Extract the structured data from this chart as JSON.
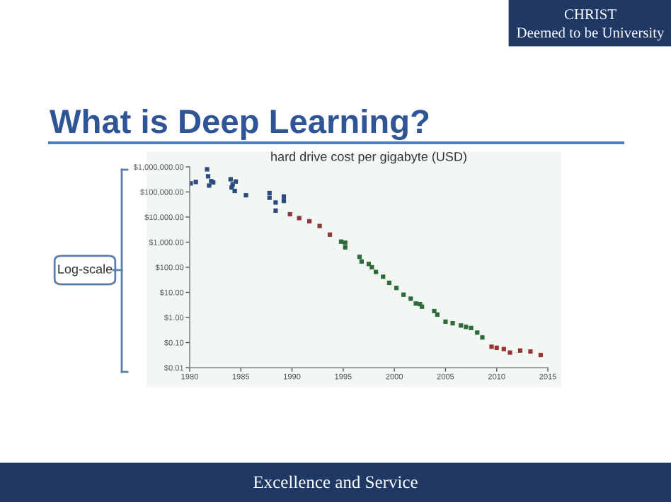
{
  "chart_data": {
    "type": "scatter",
    "title": "hard drive cost per gigabyte (USD)",
    "annotations": [
      "CHRIST",
      "Deemed to be University",
      "What is Deep Learning?",
      "Log-scale",
      "Excellence and Service"
    ],
    "series": [
      {
        "color": "#2b4a7e",
        "x": [
          1980.1,
          1980.6,
          1981.7,
          1981.8,
          1981.9,
          1982.1,
          1982.3,
          1984.0,
          1984.1,
          1984.2,
          1984.4,
          1984.5,
          1985.5,
          1987.8,
          1987.8,
          1988.4,
          1988.4,
          1989.2,
          1989.2
        ],
        "values": [
          220000,
          250000,
          800000,
          420000,
          180000,
          270000,
          240000,
          320000,
          150000,
          200000,
          110000,
          260000,
          74000,
          91000,
          59000,
          38000,
          18000,
          66000,
          44000
        ]
      },
      {
        "color": "#8b3a3a",
        "x": [
          1989.8,
          1990.7,
          1991.7,
          1992.7,
          1993.7
        ],
        "values": [
          13000,
          9100,
          6800,
          4400,
          2000
        ]
      },
      {
        "color": "#2e6b3a",
        "x": [
          1994.8,
          1995.2,
          1995.2,
          1996.6,
          1996.8,
          1997.5,
          1997.8,
          1998.2,
          1998.9,
          1999.5,
          2000.2,
          2000.9,
          2001.6,
          2002.1,
          2002.5,
          2002.7,
          2003.9,
          2004.2,
          2005.0,
          2005.7,
          2006.5,
          2007.0,
          2007.5,
          2008.1,
          2008.6
        ],
        "values": [
          1050,
          950,
          620,
          260,
          170,
          135,
          100,
          65,
          42,
          24,
          15,
          8.1,
          5.6,
          3.6,
          3.4,
          2.7,
          1.8,
          1.3,
          0.68,
          0.59,
          0.48,
          0.42,
          0.38,
          0.25,
          0.16
        ]
      },
      {
        "color": "#9b3535",
        "x": [
          2009.5,
          2010.0,
          2010.7,
          2011.3,
          2012.3,
          2013.3,
          2014.3
        ],
        "values": [
          0.068,
          0.062,
          0.055,
          0.04,
          0.048,
          0.044,
          0.032
        ]
      }
    ],
    "log": "y",
    "marker": "square",
    "grid": false,
    "xlim": [
      1980,
      2015
    ],
    "xticks": [
      1980,
      1985,
      1990,
      1995,
      2000,
      2005,
      2010,
      2015
    ],
    "ylim": [
      0.01,
      1000000
    ],
    "yticks": [
      {
        "value": 0.01,
        "label": "$0.01"
      },
      {
        "value": 0.1,
        "label": "$0.10"
      },
      {
        "value": 1,
        "label": "$1.00"
      },
      {
        "value": 10,
        "label": "$10.00"
      },
      {
        "value": 100,
        "label": "$100.00"
      },
      {
        "value": 1000,
        "label": "$1,000.00"
      },
      {
        "value": 10000,
        "label": "$10,000.00"
      },
      {
        "value": 100000,
        "label": "$100,000.00"
      },
      {
        "value": 1000000,
        "label": "$1,000,000.00"
      }
    ]
  }
}
